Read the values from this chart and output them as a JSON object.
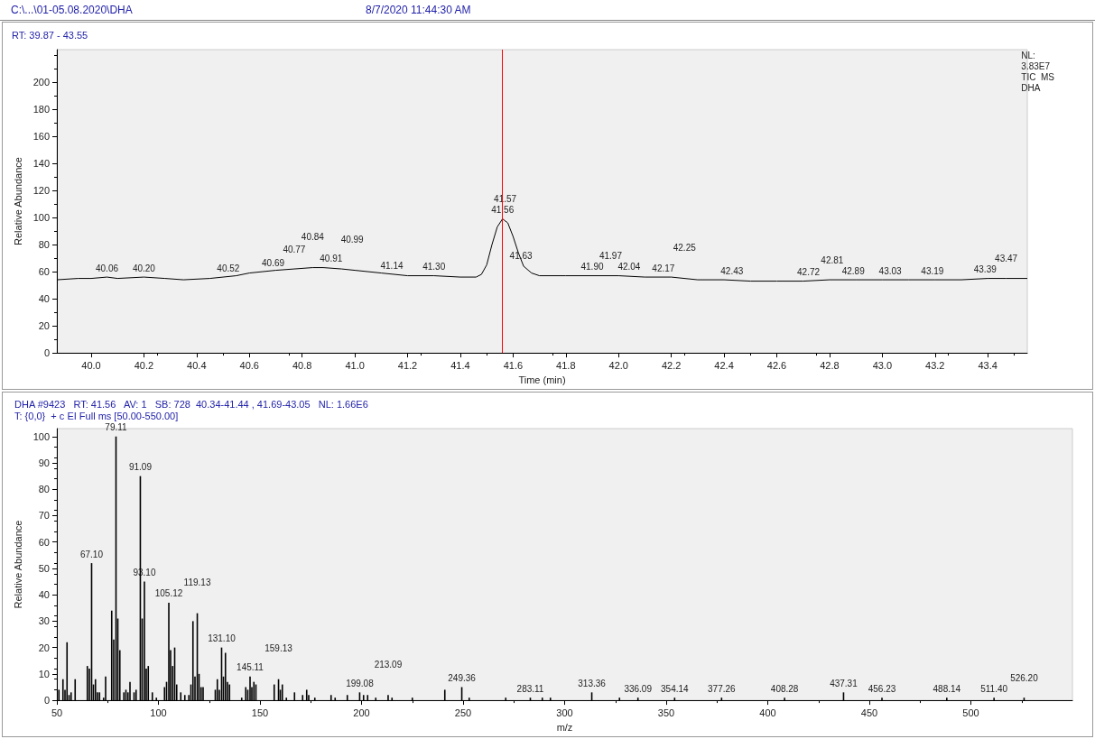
{
  "chart_data": [
    {
      "type": "line",
      "title": "C:\\...\\01-05.08.2020\\DHA",
      "subtitle": "8/7/2020 11:44:30 AM",
      "xlabel": "Time (min)",
      "ylabel": "Relative Abundance",
      "marker": "none",
      "color": "#000000",
      "x": [
        39.87,
        39.95,
        40.0,
        40.06,
        40.1,
        40.2,
        40.28,
        40.35,
        40.45,
        40.5,
        40.55,
        40.6,
        40.7,
        40.77,
        40.84,
        40.88,
        40.95,
        41.0,
        41.1,
        41.2,
        41.3,
        41.4,
        41.46,
        41.48,
        41.5,
        41.52,
        41.54,
        41.56,
        41.58,
        41.6,
        41.62,
        41.64,
        41.67,
        41.7,
        41.8,
        41.9,
        42.0,
        42.1,
        42.2,
        42.3,
        42.4,
        42.5,
        42.6,
        42.7,
        42.8,
        42.9,
        43.0,
        43.1,
        43.2,
        43.3,
        43.4,
        43.47,
        43.55
      ],
      "values": [
        54,
        55,
        55,
        56,
        55,
        56,
        55,
        54,
        55,
        56,
        57,
        59,
        61,
        62,
        63,
        63,
        62,
        61,
        59,
        57,
        57,
        56,
        56,
        58,
        65,
        80,
        93,
        99,
        96,
        86,
        74,
        64,
        59,
        57,
        57,
        57,
        57,
        56,
        56,
        54,
        54,
        53,
        53,
        53,
        54,
        54,
        54,
        54,
        54,
        54,
        55,
        55,
        55
      ],
      "xlim": [
        39.87,
        43.55
      ],
      "ylim": [
        0,
        224
      ],
      "xticks": [
        {
          "value": 40,
          "label": "40.0"
        },
        {
          "value": 40.2,
          "label": "40.2"
        },
        {
          "value": 40.4,
          "label": "40.4"
        },
        {
          "value": 40.6,
          "label": "40.6"
        },
        {
          "value": 40.8,
          "label": "40.8"
        },
        {
          "value": 41,
          "label": "41.0"
        },
        {
          "value": 41.2,
          "label": "41.2"
        },
        {
          "value": 41.4,
          "label": "41.4"
        },
        {
          "value": 41.6,
          "label": "41.6"
        },
        {
          "value": 41.8,
          "label": "41.8"
        },
        {
          "value": 42,
          "label": "42.0"
        },
        {
          "value": 42.2,
          "label": "42.2"
        },
        {
          "value": 42.4,
          "label": "42.4"
        },
        {
          "value": 42.6,
          "label": "42.6"
        },
        {
          "value": 42.8,
          "label": "42.8"
        },
        {
          "value": 43,
          "label": "43.0"
        },
        {
          "value": 43.2,
          "label": "43.2"
        },
        {
          "value": 43.4,
          "label": "43.4"
        }
      ],
      "yticks": [
        0,
        20,
        40,
        60,
        80,
        100,
        120,
        140,
        160,
        180,
        200
      ],
      "ref_lines": [
        {
          "axis": "x",
          "value": 41.56,
          "color": "#ff0000"
        }
      ],
      "annotations": [
        "RT: 39.87 - 43.55",
        "NL:\n3.83E7\nTIC  MS\nDHA",
        {
          "text": "40.06",
          "x": 40.06,
          "y": 56
        },
        {
          "text": "40.20",
          "x": 40.2,
          "y": 56
        },
        {
          "text": "40.52",
          "x": 40.52,
          "y": 56
        },
        {
          "text": "40.69",
          "x": 40.69,
          "y": 60
        },
        {
          "text": "40.77",
          "x": 40.77,
          "y": 62
        },
        {
          "text": "40.84",
          "x": 40.84,
          "y": 63
        },
        {
          "text": "40.91",
          "x": 40.91,
          "y": 63
        },
        {
          "text": "40.99",
          "x": 40.99,
          "y": 61
        },
        {
          "text": "41.14",
          "x": 41.14,
          "y": 58
        },
        {
          "text": "41.30",
          "x": 41.3,
          "y": 57
        },
        {
          "text": "41.56",
          "x": 41.56,
          "y": 99
        },
        {
          "text": "41.57",
          "x": 41.57,
          "y": 99
        },
        {
          "text": "41.63",
          "x": 41.63,
          "y": 65
        },
        {
          "text": "41.90",
          "x": 41.9,
          "y": 57
        },
        {
          "text": "41.97",
          "x": 41.97,
          "y": 57
        },
        {
          "text": "42.04",
          "x": 42.04,
          "y": 57
        },
        {
          "text": "42.17",
          "x": 42.17,
          "y": 56
        },
        {
          "text": "42.25",
          "x": 42.25,
          "y": 55
        },
        {
          "text": "42.43",
          "x": 42.43,
          "y": 54
        },
        {
          "text": "42.72",
          "x": 42.72,
          "y": 53
        },
        {
          "text": "42.81",
          "x": 42.81,
          "y": 54
        },
        {
          "text": "42.89",
          "x": 42.89,
          "y": 54
        },
        {
          "text": "43.03",
          "x": 43.03,
          "y": 54
        },
        {
          "text": "43.19",
          "x": 43.19,
          "y": 54
        },
        {
          "text": "43.39",
          "x": 43.39,
          "y": 55
        },
        {
          "text": "43.47",
          "x": 43.47,
          "y": 55
        }
      ]
    },
    {
      "type": "bar",
      "title": "DHA #9423   RT: 41.56   AV: 1   SB: 728  40.34-41.44 , 41.69-43.05   NL: 1.66E6",
      "subtitle": "T: {0,0}  + c EI Full ms [50.00-550.00]",
      "xlabel": "m/z",
      "ylabel": "Relative Abundance",
      "color": "#000000",
      "x": [
        51,
        53,
        54,
        55,
        56,
        57,
        59,
        65,
        66,
        67.1,
        68,
        69,
        70,
        71,
        73,
        74,
        77,
        78,
        79.11,
        80,
        81,
        83,
        84,
        85,
        86,
        88,
        89,
        91.09,
        92,
        93.1,
        94,
        95,
        97,
        99,
        103,
        104,
        105.12,
        106,
        107,
        108,
        109,
        111,
        113,
        115,
        116,
        117,
        118,
        119.13,
        120,
        121,
        122,
        128,
        129,
        130,
        131.1,
        132,
        133,
        134,
        135,
        141,
        143,
        144,
        145.11,
        146,
        147,
        148,
        157,
        159.13,
        160,
        161,
        163,
        167,
        171,
        173,
        174,
        177,
        185,
        187,
        193,
        199.08,
        201,
        203,
        207,
        213.09,
        215,
        225,
        241,
        249.36,
        253,
        271,
        283.11,
        289,
        293,
        313.36,
        327,
        336.09,
        354.14,
        377.26,
        408.28,
        437.31,
        456.23,
        488.14,
        511.4,
        526.2
      ],
      "values": [
        4,
        8,
        4,
        22,
        2,
        3,
        8,
        13,
        12,
        52,
        6,
        8,
        3,
        3,
        1,
        9,
        34,
        23,
        100,
        31,
        19,
        3,
        4,
        3,
        7,
        3,
        4,
        85,
        31,
        45,
        12,
        13,
        3,
        1,
        5,
        7,
        37,
        19,
        13,
        20,
        6,
        3,
        2,
        2,
        6,
        30,
        9,
        33,
        10,
        5,
        5,
        4,
        8,
        4,
        20,
        9,
        18,
        7,
        6,
        1,
        5,
        4,
        9,
        5,
        7,
        6,
        6,
        8,
        4,
        6,
        1,
        3,
        2,
        4,
        2,
        1,
        2,
        1,
        2,
        3,
        2,
        2,
        1,
        2,
        1,
        1,
        4,
        5,
        1,
        1,
        1,
        1,
        1,
        3,
        1,
        1,
        1,
        1,
        1,
        3,
        1,
        1,
        1,
        1
      ],
      "xlim": [
        50,
        550
      ],
      "ylim": [
        0,
        103
      ],
      "xticks": [
        50,
        100,
        150,
        200,
        250,
        300,
        350,
        400,
        450,
        500
      ],
      "yticks": [
        0,
        10,
        20,
        30,
        40,
        50,
        60,
        70,
        80,
        90,
        100
      ],
      "annotations": [
        {
          "text": "79.11",
          "x": 79.11,
          "y": 100
        },
        {
          "text": "91.09",
          "x": 91.09,
          "y": 85
        },
        {
          "text": "67.10",
          "x": 67.1,
          "y": 52
        },
        {
          "text": "93.10",
          "x": 93.1,
          "y": 45
        },
        {
          "text": "105.12",
          "x": 105.12,
          "y": 37
        },
        {
          "text": "119.13",
          "x": 119.13,
          "y": 33
        },
        {
          "text": "131.10",
          "x": 131.1,
          "y": 20
        },
        {
          "text": "145.11",
          "x": 145.11,
          "y": 9
        },
        {
          "text": "159.13",
          "x": 159.13,
          "y": 8
        },
        {
          "text": "199.08",
          "x": 199.08,
          "y": 3
        },
        {
          "text": "213.09",
          "x": 213.09,
          "y": 2
        },
        {
          "text": "249.36",
          "x": 249.36,
          "y": 5
        },
        {
          "text": "283.11",
          "x": 283.11,
          "y": 1
        },
        {
          "text": "313.36",
          "x": 313.36,
          "y": 3
        },
        {
          "text": "336.09",
          "x": 336.09,
          "y": 1
        },
        {
          "text": "354.14",
          "x": 354.14,
          "y": 1
        },
        {
          "text": "377.26",
          "x": 377.26,
          "y": 1
        },
        {
          "text": "408.28",
          "x": 408.28,
          "y": 1
        },
        {
          "text": "437.31",
          "x": 437.31,
          "y": 3
        },
        {
          "text": "456.23",
          "x": 456.23,
          "y": 1
        },
        {
          "text": "488.14",
          "x": 488.14,
          "y": 1
        },
        {
          "text": "511.40",
          "x": 511.4,
          "y": 1
        },
        {
          "text": "526.20",
          "x": 526.2,
          "y": 1
        }
      ]
    }
  ]
}
